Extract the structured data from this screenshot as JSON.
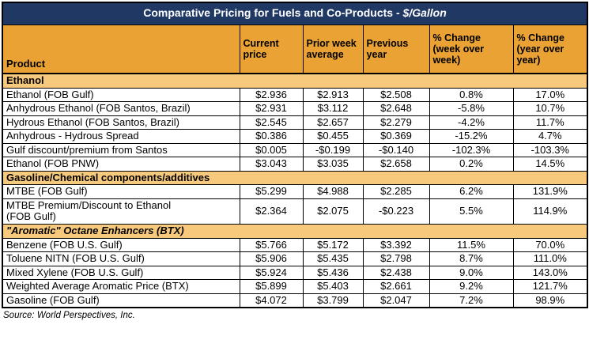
{
  "title": {
    "main": "Comparative Pricing for Fuels and Co-Products - ",
    "italic": "$/Gallon"
  },
  "colors": {
    "title_bar": "#203864",
    "header_row": "#E9A233",
    "section_row": "#F7C97D",
    "grid_border": "#000000"
  },
  "chart_data": {
    "type": "table",
    "title": "Comparative Pricing for Fuels and Co-Products - $/Gallon",
    "columns": [
      "Product",
      "Current price",
      "Prior week average",
      "Previous year",
      "% Change (week over week)",
      "% Change (year over year)"
    ],
    "sections": [
      {
        "name": "Ethanol",
        "italic": false,
        "rows": [
          {
            "product": "Ethanol (FOB Gulf)",
            "values": [
              "$2.936",
              "$2.913",
              "$2.508",
              "0.8%",
              "17.0%"
            ]
          },
          {
            "product": "Anhydrous Ethanol (FOB Santos, Brazil)",
            "values": [
              "$2.931",
              "$3.112",
              "$2.648",
              "-5.8%",
              "10.7%"
            ]
          },
          {
            "product": "Hydrous Ethanol (FOB Santos, Brazil)",
            "values": [
              "$2.545",
              "$2.657",
              "$2.279",
              "-4.2%",
              "11.7%"
            ]
          },
          {
            "product": "Anhydrous - Hydrous Spread",
            "values": [
              "$0.386",
              "$0.455",
              "$0.369",
              "-15.2%",
              "4.7%"
            ]
          },
          {
            "product": "Gulf discount/premium from Santos",
            "values": [
              "$0.005",
              "-$0.199",
              "-$0.140",
              "-102.3%",
              "-103.3%"
            ]
          },
          {
            "product": "Ethanol (FOB PNW)",
            "values": [
              "$3.043",
              "$3.035",
              "$2.658",
              "0.2%",
              "14.5%"
            ]
          }
        ]
      },
      {
        "name": "Gasoline/Chemical components/additives",
        "italic": false,
        "rows": [
          {
            "product": "MTBE (FOB Gulf)",
            "values": [
              "$5.299",
              "$4.988",
              "$2.285",
              "6.2%",
              "131.9%"
            ]
          },
          {
            "product": "MTBE Premium/Discount to Ethanol\n(FOB Gulf)",
            "values": [
              "$2.364",
              "$2.075",
              "-$0.223",
              "5.5%",
              "114.9%"
            ]
          }
        ]
      },
      {
        "name": "\"Aromatic\" Octane Enhancers (BTX)",
        "italic": true,
        "rows": [
          {
            "product": "Benzene (FOB U.S. Gulf)",
            "values": [
              "$5.766",
              "$5.172",
              "$3.392",
              "11.5%",
              "70.0%"
            ]
          },
          {
            "product": "Toluene NITN (FOB U.S. Gulf)",
            "values": [
              "$5.906",
              "$5.435",
              "$2.798",
              "8.7%",
              "111.0%"
            ]
          },
          {
            "product": "Mixed Xylene (FOB U.S. Gulf)",
            "values": [
              "$5.924",
              "$5.436",
              "$2.438",
              "9.0%",
              "143.0%"
            ]
          },
          {
            "product": "Weighted Average Aromatic Price (BTX)",
            "values": [
              "$5.899",
              "$5.403",
              "$2.661",
              "9.2%",
              "121.7%"
            ]
          },
          {
            "product": "Gasoline (FOB Gulf)",
            "values": [
              "$4.072",
              "$3.799",
              "$2.047",
              "7.2%",
              "98.9%"
            ]
          }
        ]
      }
    ],
    "source": "Source: World Perspectives, Inc."
  }
}
